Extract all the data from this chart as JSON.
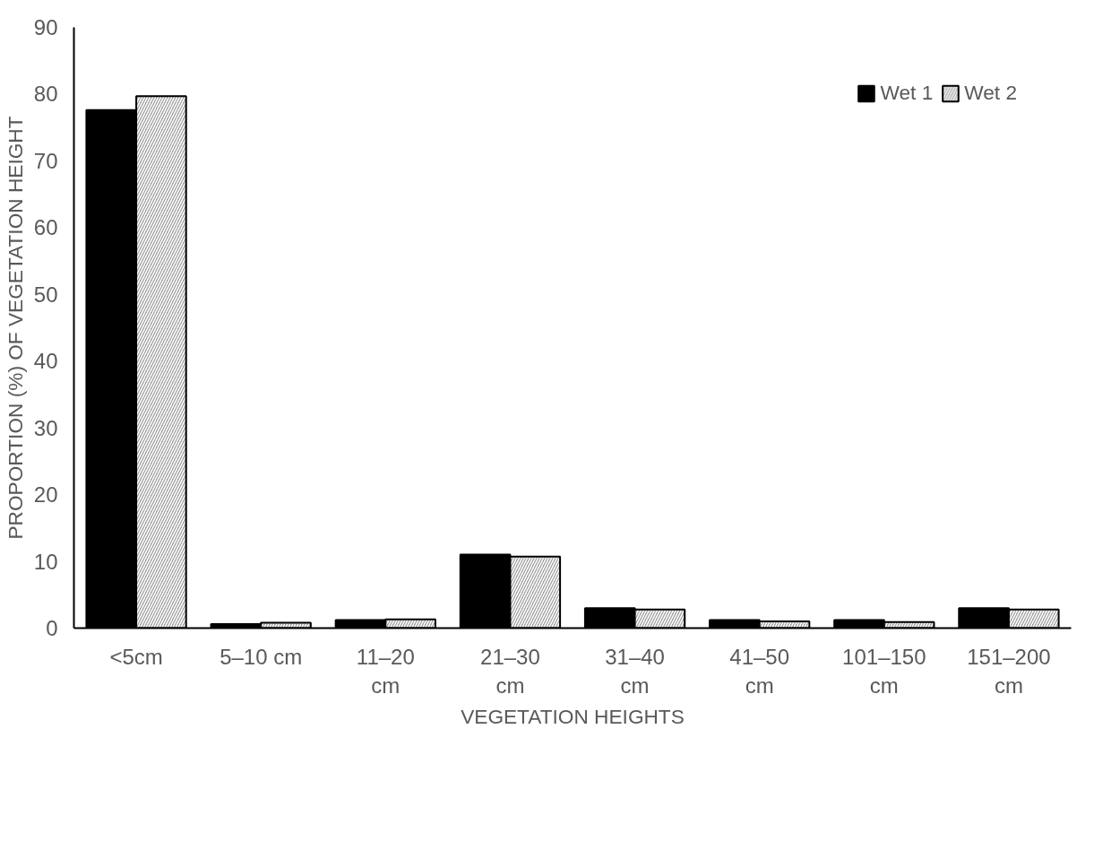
{
  "chart_data": {
    "type": "bar",
    "xlabel": "VEGETATION HEIGHTS",
    "ylabel": "PROPORTION (%) OF VEGETATION HEIGHT",
    "categories": [
      "<5cm",
      "5–10 cm",
      "11–20 cm",
      "21–30 cm",
      "31–40 cm",
      "41–50 cm",
      "101–150 cm",
      "151–200 cm"
    ],
    "series": [
      {
        "name": "Wet 1",
        "color": "#000000",
        "values": [
          77.6,
          0.6,
          1.2,
          11.0,
          3.0,
          1.2,
          1.2,
          3.0
        ]
      },
      {
        "name": "Wet 2",
        "color": "#9e9e9e",
        "values": [
          79.7,
          0.8,
          1.3,
          10.7,
          2.8,
          1.0,
          0.9,
          2.8
        ]
      }
    ],
    "ylim": [
      0,
      90
    ],
    "yticks": [
      0,
      10,
      20,
      30,
      40,
      50,
      60,
      70,
      80,
      90
    ],
    "grid": false,
    "legend": "top right"
  }
}
